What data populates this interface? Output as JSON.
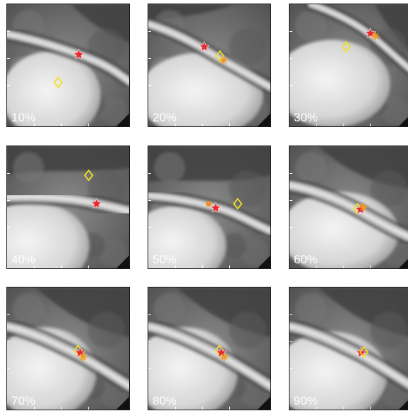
{
  "panels": [
    {
      "label": "10%",
      "variant": 0
    },
    {
      "label": "20%",
      "variant": 1
    },
    {
      "label": "30%",
      "variant": 2
    },
    {
      "label": "40%",
      "variant": 3
    },
    {
      "label": "50%",
      "variant": 4
    },
    {
      "label": "60%",
      "variant": 5
    },
    {
      "label": "70%",
      "variant": 6
    },
    {
      "label": "80%",
      "variant": 6
    },
    {
      "label": "90%",
      "variant": 7
    }
  ],
  "marker_colors": {
    "star": "#e8262e",
    "diamond": "#f2e025",
    "asterisk": "#f39a1b",
    "dot": "#f0902a"
  }
}
